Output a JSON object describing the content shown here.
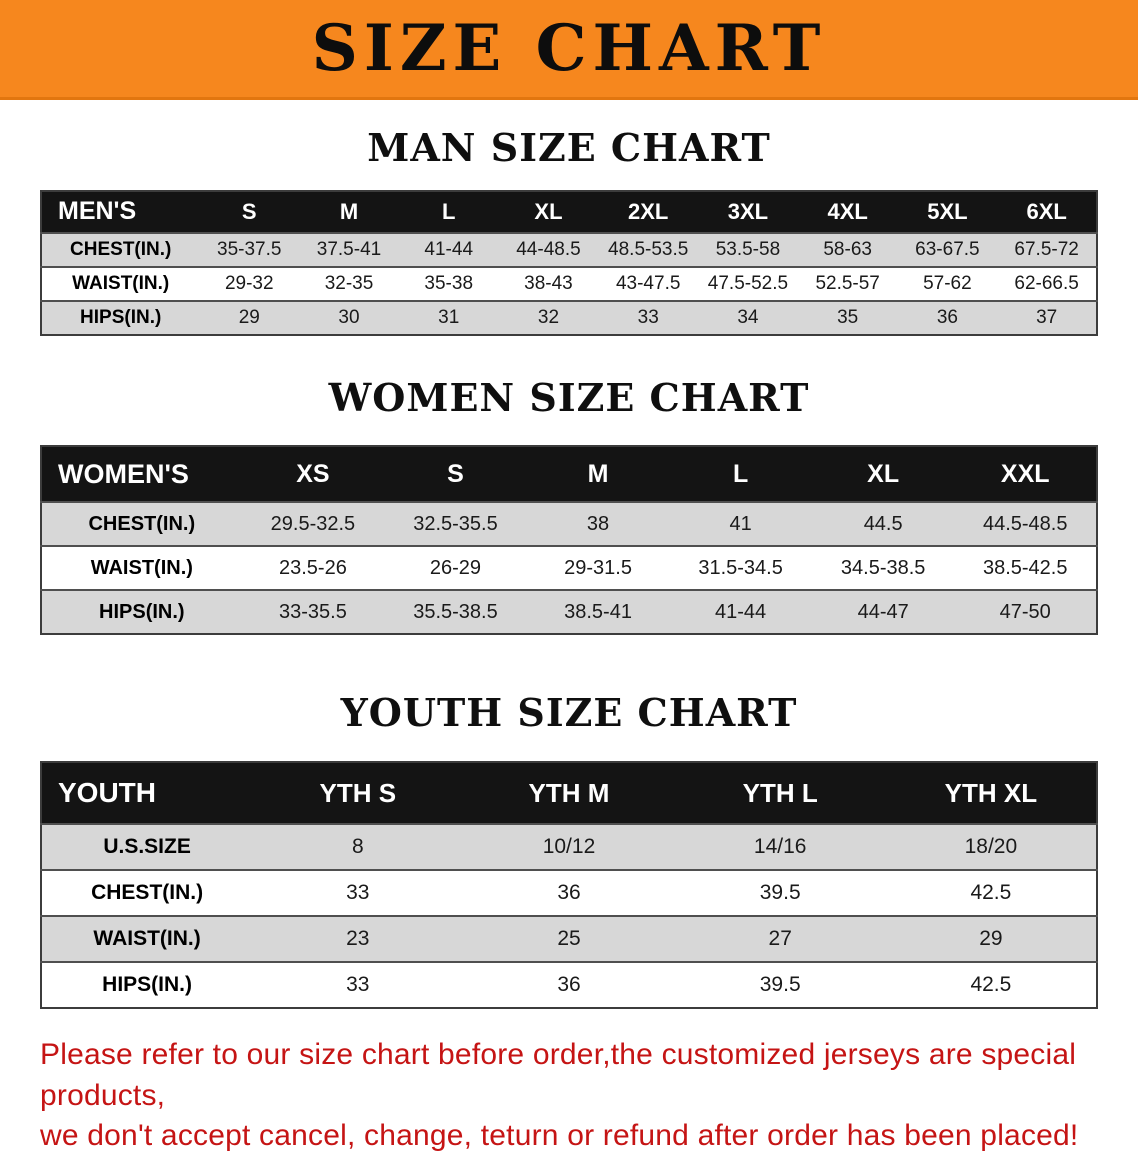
{
  "banner": {
    "title": "SIZE CHART"
  },
  "sections": [
    {
      "id": "men",
      "heading": "MAN SIZE CHART",
      "table": {
        "label": "MEN'S",
        "columns": [
          "S",
          "M",
          "L",
          "XL",
          "2XL",
          "3XL",
          "4XL",
          "5XL",
          "6XL"
        ],
        "rows": [
          {
            "label": "CHEST(IN.)",
            "values": [
              "35-37.5",
              "37.5-41",
              "41-44",
              "44-48.5",
              "48.5-53.5",
              "53.5-58",
              "58-63",
              "63-67.5",
              "67.5-72"
            ]
          },
          {
            "label": "WAIST(IN.)",
            "values": [
              "29-32",
              "32-35",
              "35-38",
              "38-43",
              "43-47.5",
              "47.5-52.5",
              "52.5-57",
              "57-62",
              "62-66.5"
            ]
          },
          {
            "label": "HIPS(IN.)",
            "values": [
              "29",
              "30",
              "31",
              "32",
              "33",
              "34",
              "35",
              "36",
              "37"
            ]
          }
        ]
      }
    },
    {
      "id": "women",
      "heading": "WOMEN SIZE CHART",
      "table": {
        "label": "WOMEN'S",
        "columns": [
          "XS",
          "S",
          "M",
          "L",
          "XL",
          "XXL"
        ],
        "rows": [
          {
            "label": "CHEST(IN.)",
            "values": [
              "29.5-32.5",
              "32.5-35.5",
              "38",
              "41",
              "44.5",
              "44.5-48.5"
            ]
          },
          {
            "label": "WAIST(IN.)",
            "values": [
              "23.5-26",
              "26-29",
              "29-31.5",
              "31.5-34.5",
              "34.5-38.5",
              "38.5-42.5"
            ]
          },
          {
            "label": "HIPS(IN.)",
            "values": [
              "33-35.5",
              "35.5-38.5",
              "38.5-41",
              "41-44",
              "44-47",
              "47-50"
            ]
          }
        ]
      }
    },
    {
      "id": "youth",
      "heading": "YOUTH SIZE CHART",
      "table": {
        "label": "YOUTH",
        "columns": [
          "YTH S",
          "YTH M",
          "YTH L",
          "YTH XL"
        ],
        "rows": [
          {
            "label": "U.S.SIZE",
            "values": [
              "8",
              "10/12",
              "14/16",
              "18/20"
            ]
          },
          {
            "label": "CHEST(IN.)",
            "values": [
              "33",
              "36",
              "39.5",
              "42.5"
            ]
          },
          {
            "label": "WAIST(IN.)",
            "values": [
              "23",
              "25",
              "27",
              "29"
            ]
          },
          {
            "label": "HIPS(IN.)",
            "values": [
              "33",
              "36",
              "39.5",
              "42.5"
            ]
          }
        ]
      }
    }
  ],
  "footer": {
    "line1": "Please refer to our size chart before order,the customized jerseys are special products,",
    "line2": "we don't accept cancel, change, teturn or refund after order has been placed!"
  },
  "colors": {
    "banner_orange": "#f6871e",
    "header_black": "#141414",
    "stripe_gray": "#d7d7d7",
    "notice_red": "#c51414"
  }
}
